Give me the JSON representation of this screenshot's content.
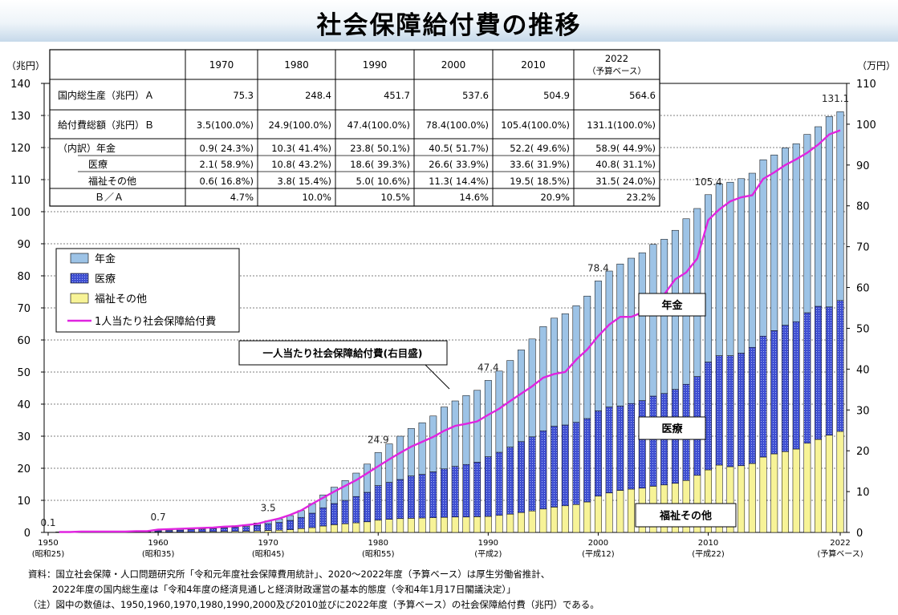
{
  "page": {
    "title": "社会保障給付費の推移",
    "footnotes": [
      "資料：国立社会保障・人口問題研究所「令和元年度社会保障費用統計」、2020～2022年度（予算ベース）は厚生労働省推計、",
      "2022年度の国内総生産は「令和4年度の経済見通しと経済財政運営の基本的態度（令和4年1月17日閣議決定）」",
      "（注）図中の数値は、1950,1960,1970,1980,1990,2000及び2010並びに2022年度（予算ベース）の社会保障給付費（兆円）である。"
    ]
  },
  "colors": {
    "pension": "#9dc3e6",
    "medical": "#3f4fd1",
    "welfare": "#f7f397",
    "per_capita_line": "#e024e0",
    "gridline": "#000000"
  },
  "table": {
    "columns": [
      "1970",
      "1980",
      "1990",
      "2000",
      "2010",
      "2022\n（予算ベース）"
    ],
    "rows": [
      {
        "label": "国内総生産（兆円）Ａ",
        "cells": [
          "75.3",
          "248.4",
          "451.7",
          "537.6",
          "504.9",
          "564.6"
        ]
      },
      {
        "label": "給付費総額（兆円）Ｂ",
        "cells": [
          "3.5(100.0%)",
          "24.9(100.0%)",
          "47.4(100.0%)",
          "78.4(100.0%)",
          "105.4(100.0%)",
          "131.1(100.0%)"
        ]
      },
      {
        "label": "（内訳）年金",
        "cells": [
          "0.9( 24.3%)",
          "10.3( 41.4%)",
          "23.8( 50.1%)",
          "40.5( 51.7%)",
          "52.2( 49.6%)",
          "58.9( 44.9%)"
        ]
      },
      {
        "label": "医療",
        "cells": [
          "2.1( 58.9%)",
          "10.8( 43.2%)",
          "18.6( 39.3%)",
          "26.6( 33.9%)",
          "33.6( 31.9%)",
          "40.8( 31.1%)"
        ]
      },
      {
        "label": "福祉その他",
        "cells": [
          "0.6( 16.8%)",
          "3.8( 15.4%)",
          "5.0( 10.6%)",
          "11.3( 14.4%)",
          "19.5( 18.5%)",
          "31.5( 24.0%)"
        ]
      },
      {
        "label": "Ｂ／Ａ",
        "cells": [
          "4.7%",
          "10.0%",
          "10.5%",
          "14.6%",
          "20.9%",
          "23.2%"
        ]
      }
    ]
  },
  "chart_data": {
    "type": "bar",
    "stacked": true,
    "title": "社会保障給付費の推移",
    "y_unit_left": "（兆円）",
    "y_unit_right": "（万円）",
    "ylim": [
      0,
      140
    ],
    "ylim_right": [
      0,
      110
    ],
    "yticks": [
      "0",
      "10",
      "20",
      "30",
      "40",
      "50",
      "60",
      "70",
      "80",
      "90",
      "100",
      "110",
      "120",
      "130",
      "140"
    ],
    "yticks_right": [
      "0",
      "10",
      "20",
      "30",
      "40",
      "50",
      "60",
      "70",
      "80",
      "90",
      "100",
      "110"
    ],
    "xticks": [
      {
        "year": 1950,
        "label": "1950",
        "sub": "(昭和25)"
      },
      {
        "year": 1960,
        "label": "1960",
        "sub": "(昭和35)"
      },
      {
        "year": 1970,
        "label": "1970",
        "sub": "(昭和45)"
      },
      {
        "year": 1980,
        "label": "1980",
        "sub": "(昭和55)"
      },
      {
        "year": 1990,
        "label": "1990",
        "sub": "(平成2)"
      },
      {
        "year": 2000,
        "label": "2000",
        "sub": "(平成12)"
      },
      {
        "year": 2010,
        "label": "2010",
        "sub": "(平成22)"
      },
      {
        "year": 2022,
        "label": "2022",
        "sub": "(予算ベース)"
      }
    ],
    "grid": true,
    "legend": {
      "position": "left",
      "entries": [
        {
          "key": "pension",
          "label": "年金"
        },
        {
          "key": "medical",
          "label": "医療"
        },
        {
          "key": "welfare",
          "label": "福祉その他"
        },
        {
          "key": "per_capita",
          "label": "1人当たり社会保障給付費"
        }
      ]
    },
    "series_labels": {
      "pension": "年金",
      "medical": "医療",
      "welfare": "福祉その他"
    },
    "line_callout": "一人当たり社会保障給付費(右目盛)",
    "x": [
      1951,
      1952,
      1953,
      1954,
      1955,
      1956,
      1957,
      1958,
      1959,
      1960,
      1961,
      1962,
      1963,
      1964,
      1965,
      1966,
      1967,
      1968,
      1969,
      1970,
      1971,
      1972,
      1973,
      1974,
      1975,
      1976,
      1977,
      1978,
      1979,
      1980,
      1981,
      1982,
      1983,
      1984,
      1985,
      1986,
      1987,
      1988,
      1989,
      1990,
      1991,
      1992,
      1993,
      1994,
      1995,
      1996,
      1997,
      1998,
      1999,
      2000,
      2001,
      2002,
      2003,
      2004,
      2005,
      2006,
      2007,
      2008,
      2009,
      2010,
      2011,
      2012,
      2013,
      2014,
      2015,
      2016,
      2017,
      2018,
      2019,
      2020,
      2021,
      2022
    ],
    "series": [
      {
        "name": "福祉その他",
        "key": "welfare",
        "values": [
          0.05,
          0.05,
          0.06,
          0.07,
          0.07,
          0.08,
          0.09,
          0.1,
          0.11,
          0.13,
          0.15,
          0.17,
          0.19,
          0.22,
          0.25,
          0.28,
          0.31,
          0.36,
          0.45,
          0.6,
          0.7,
          0.85,
          1.2,
          1.5,
          2.0,
          2.4,
          2.7,
          3.0,
          3.3,
          3.8,
          4.1,
          4.3,
          4.4,
          4.5,
          4.6,
          4.7,
          4.8,
          4.8,
          4.9,
          5.0,
          5.3,
          5.7,
          6.2,
          6.7,
          7.3,
          7.9,
          8.3,
          8.7,
          9.5,
          11.3,
          12.3,
          13.1,
          13.5,
          13.8,
          14.4,
          14.8,
          15.3,
          16.2,
          17.8,
          19.5,
          21.0,
          20.5,
          20.8,
          21.5,
          23.5,
          24.5,
          25.2,
          26.0,
          27.8,
          29.0,
          30.3,
          31.5
        ]
      },
      {
        "name": "医療",
        "key": "medical",
        "values": [
          0.05,
          0.05,
          0.06,
          0.07,
          0.08,
          0.1,
          0.11,
          0.13,
          0.15,
          0.38,
          0.45,
          0.55,
          0.65,
          0.8,
          0.95,
          1.1,
          1.25,
          1.45,
          1.75,
          2.1,
          2.4,
          2.9,
          3.5,
          4.5,
          5.7,
          6.6,
          7.3,
          8.2,
          9.2,
          10.8,
          11.5,
          12.2,
          13.2,
          13.6,
          14.3,
          15.1,
          15.8,
          16.4,
          17.0,
          18.6,
          19.7,
          20.9,
          22.1,
          23.1,
          24.4,
          25.2,
          25.2,
          25.6,
          26.0,
          26.6,
          26.8,
          26.3,
          26.7,
          27.3,
          28.1,
          28.5,
          29.3,
          30.0,
          30.8,
          33.6,
          34.1,
          34.6,
          35.1,
          36.2,
          37.7,
          38.4,
          39.4,
          39.7,
          40.7,
          41.5,
          40.0,
          40.8
        ]
      },
      {
        "name": "年金",
        "key": "pension",
        "values": [
          0.05,
          0.05,
          0.05,
          0.06,
          0.06,
          0.07,
          0.07,
          0.08,
          0.09,
          0.19,
          0.22,
          0.26,
          0.3,
          0.35,
          0.4,
          0.45,
          0.53,
          0.62,
          0.75,
          0.9,
          1.1,
          1.5,
          2.1,
          3.0,
          4.0,
          5.1,
          6.2,
          7.3,
          8.8,
          10.3,
          12.0,
          13.5,
          14.8,
          16.1,
          17.4,
          19.3,
          20.4,
          21.5,
          22.4,
          23.8,
          25.3,
          27.0,
          28.6,
          30.5,
          32.5,
          33.7,
          34.7,
          36.4,
          38.2,
          40.5,
          42.4,
          44.3,
          45.3,
          46.1,
          47.3,
          48.1,
          49.6,
          51.6,
          52.4,
          52.2,
          53.6,
          54.1,
          54.4,
          54.3,
          55.0,
          54.8,
          55.3,
          55.5,
          55.6,
          56.0,
          59.4,
          58.9
        ]
      }
    ],
    "per_capita": {
      "name": "1人当たり社会保障給付費",
      "unit": "万円",
      "axis": "right",
      "values": [
        0.1,
        0.1,
        0.2,
        0.2,
        0.2,
        0.2,
        0.2,
        0.3,
        0.3,
        0.7,
        0.8,
        0.9,
        1.0,
        1.1,
        1.2,
        1.4,
        1.5,
        1.8,
        2.1,
        2.8,
        3.4,
        4.3,
        5.4,
        7.0,
        8.5,
        10.0,
        11.4,
        12.8,
        14.5,
        16.2,
        17.9,
        19.5,
        21.0,
        22.2,
        23.4,
        24.9,
        26.1,
        26.6,
        27.2,
        28.8,
        30.3,
        32.2,
        34.0,
        35.8,
        37.9,
        38.8,
        39.3,
        42.3,
        44.8,
        48.1,
        50.9,
        52.8,
        52.8,
        53.9,
        57.1,
        58.3,
        62.0,
        63.7,
        67.1,
        76.5,
        79.1,
        81.1,
        82.1,
        82.6,
        86.6,
        88.2,
        90.0,
        91.4,
        93.0,
        95.0,
        97.5,
        98.5
      ]
    },
    "data_labels": [
      {
        "year": 1950,
        "value": "0.1"
      },
      {
        "year": 1960,
        "value": "0.7"
      },
      {
        "year": 1970,
        "value": "3.5"
      },
      {
        "year": 1980,
        "value": "24.9"
      },
      {
        "year": 1990,
        "value": "47.4"
      },
      {
        "year": 2000,
        "value": "78.4"
      },
      {
        "year": 2010,
        "value": "105.4"
      },
      {
        "year": 2022,
        "value": "131.1"
      }
    ]
  }
}
